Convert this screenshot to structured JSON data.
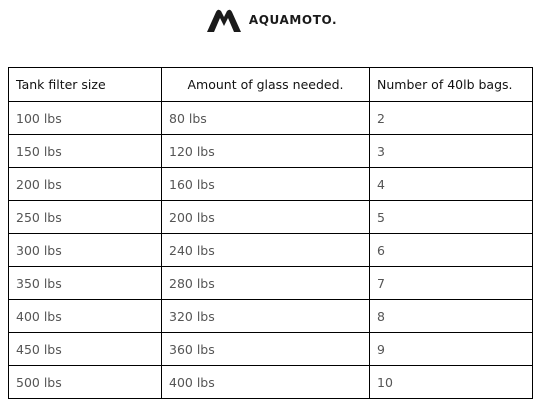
{
  "brand": {
    "name": "AQUAMOTO."
  },
  "table": {
    "headers": [
      "Tank filter size",
      "Amount of glass needed.",
      "Number of 40lb bags."
    ],
    "rows": [
      [
        "100 lbs",
        "80 lbs",
        "2"
      ],
      [
        "150 lbs",
        "120 lbs",
        "3"
      ],
      [
        "200 lbs",
        "160 lbs",
        "4"
      ],
      [
        "250 lbs",
        "200 lbs",
        "5"
      ],
      [
        "300 lbs",
        "240 lbs",
        "6"
      ],
      [
        "350 lbs",
        "280 lbs",
        "7"
      ],
      [
        "400 lbs",
        "320 lbs",
        "8"
      ],
      [
        "450 lbs",
        "360 lbs",
        "9"
      ],
      [
        "500 lbs",
        "400 lbs",
        "10"
      ]
    ]
  }
}
